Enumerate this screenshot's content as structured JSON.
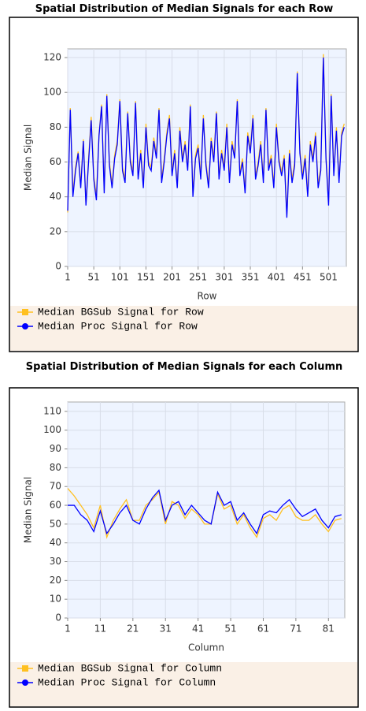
{
  "chart_data": [
    {
      "type": "line",
      "title": "Spatial Distribution of Median Signals for each Row",
      "xlabel": "Row",
      "ylabel": "Median Signal",
      "x": [
        1,
        6,
        11,
        16,
        21,
        26,
        31,
        36,
        41,
        46,
        51,
        56,
        61,
        66,
        71,
        76,
        81,
        86,
        91,
        96,
        101,
        106,
        111,
        116,
        121,
        126,
        131,
        136,
        141,
        146,
        151,
        156,
        161,
        166,
        171,
        176,
        181,
        186,
        191,
        196,
        201,
        206,
        211,
        216,
        221,
        226,
        231,
        236,
        241,
        246,
        251,
        256,
        261,
        266,
        271,
        276,
        281,
        286,
        291,
        296,
        301,
        306,
        311,
        316,
        321,
        326,
        331,
        336,
        341,
        346,
        351,
        356,
        361,
        366,
        371,
        376,
        381,
        386,
        391,
        396,
        401,
        406,
        411,
        416,
        421,
        426,
        431,
        436,
        441,
        446,
        451,
        456,
        461,
        466,
        471,
        476,
        481,
        486,
        491,
        496,
        501,
        506,
        511,
        516,
        521,
        526,
        531
      ],
      "series": [
        {
          "name": "Median BGSub Signal for Row",
          "color": "#ffc020",
          "marker": "square",
          "values": [
            31,
            91,
            42,
            57,
            66,
            47,
            73,
            36,
            62,
            86,
            52,
            40,
            76,
            93,
            44,
            99,
            60,
            47,
            64,
            72,
            96,
            57,
            50,
            89,
            62,
            54,
            95,
            52,
            67,
            47,
            82,
            60,
            57,
            74,
            64,
            91,
            50,
            62,
            77,
            87,
            54,
            67,
            47,
            80,
            62,
            72,
            57,
            93,
            42,
            64,
            70,
            52,
            87,
            60,
            47,
            74,
            62,
            89,
            52,
            67,
            57,
            82,
            50,
            72,
            64,
            96,
            54,
            62,
            44,
            77,
            67,
            87,
            52,
            60,
            72,
            50,
            91,
            57,
            64,
            47,
            82,
            62,
            54,
            64,
            30,
            67,
            50,
            60,
            112,
            67,
            52,
            64,
            42,
            72,
            62,
            77,
            47,
            57,
            122,
            64,
            37,
            99,
            54,
            80,
            50,
            77,
            82
          ]
        },
        {
          "name": "Median Proc Signal for Row",
          "color": "#0000ff",
          "marker": "circle",
          "values": [
            32,
            90,
            40,
            55,
            65,
            45,
            72,
            35,
            60,
            84,
            50,
            38,
            75,
            92,
            42,
            98,
            58,
            45,
            62,
            70,
            95,
            55,
            48,
            88,
            60,
            52,
            94,
            50,
            65,
            45,
            80,
            58,
            55,
            72,
            62,
            90,
            48,
            60,
            75,
            85,
            52,
            65,
            45,
            78,
            60,
            70,
            55,
            92,
            40,
            62,
            68,
            50,
            85,
            58,
            45,
            72,
            60,
            88,
            50,
            65,
            55,
            80,
            48,
            70,
            62,
            95,
            52,
            60,
            42,
            75,
            65,
            85,
            50,
            58,
            70,
            48,
            90,
            55,
            62,
            45,
            80,
            60,
            52,
            62,
            28,
            65,
            48,
            58,
            111,
            65,
            50,
            62,
            40,
            70,
            60,
            75,
            45,
            55,
            120,
            62,
            35,
            98,
            52,
            78,
            48,
            75,
            80
          ]
        }
      ],
      "xlim": [
        1,
        535
      ],
      "ylim": [
        0,
        125
      ],
      "xticks": [
        1,
        51,
        101,
        151,
        201,
        251,
        301,
        351,
        401,
        451,
        501
      ],
      "yticks": [
        0,
        20,
        40,
        60,
        80,
        100,
        120
      ],
      "grid": true,
      "legend": "bottom"
    },
    {
      "type": "line",
      "title": "Spatial Distribution of Median Signals for each Column",
      "xlabel": "Column",
      "ylabel": "Median Signal",
      "x": [
        1,
        3,
        5,
        7,
        9,
        11,
        13,
        15,
        17,
        19,
        21,
        23,
        25,
        27,
        29,
        31,
        33,
        35,
        37,
        39,
        41,
        43,
        45,
        47,
        49,
        51,
        53,
        55,
        57,
        59,
        61,
        63,
        65,
        67,
        69,
        71,
        73,
        75,
        77,
        79,
        81,
        83,
        85
      ],
      "series": [
        {
          "name": "Median BGSub Signal for Column",
          "color": "#ffc020",
          "marker": "square",
          "values": [
            69,
            65,
            60,
            55,
            48,
            60,
            43,
            52,
            58,
            63,
            52,
            52,
            60,
            63,
            67,
            50,
            62,
            60,
            53,
            58,
            55,
            50,
            50,
            66,
            58,
            60,
            50,
            55,
            48,
            43,
            53,
            55,
            52,
            58,
            60,
            54,
            52,
            52,
            55,
            50,
            46,
            52,
            53
          ]
        },
        {
          "name": "Median Proc Signal for Column",
          "color": "#0000ff",
          "marker": "circle",
          "values": [
            60,
            60,
            55,
            52,
            46,
            57,
            45,
            50,
            56,
            60,
            52,
            50,
            58,
            64,
            68,
            52,
            60,
            62,
            55,
            60,
            56,
            52,
            50,
            67,
            60,
            62,
            52,
            56,
            50,
            45,
            55,
            57,
            56,
            60,
            63,
            58,
            54,
            56,
            58,
            52,
            48,
            54,
            55
          ]
        }
      ],
      "xlim": [
        1,
        86
      ],
      "ylim": [
        0,
        115
      ],
      "xticks": [
        1,
        11,
        21,
        31,
        41,
        51,
        61,
        71,
        81
      ],
      "yticks": [
        0,
        10,
        20,
        30,
        40,
        50,
        60,
        70,
        80,
        90,
        100,
        110
      ],
      "grid": true,
      "legend": "bottom"
    }
  ]
}
